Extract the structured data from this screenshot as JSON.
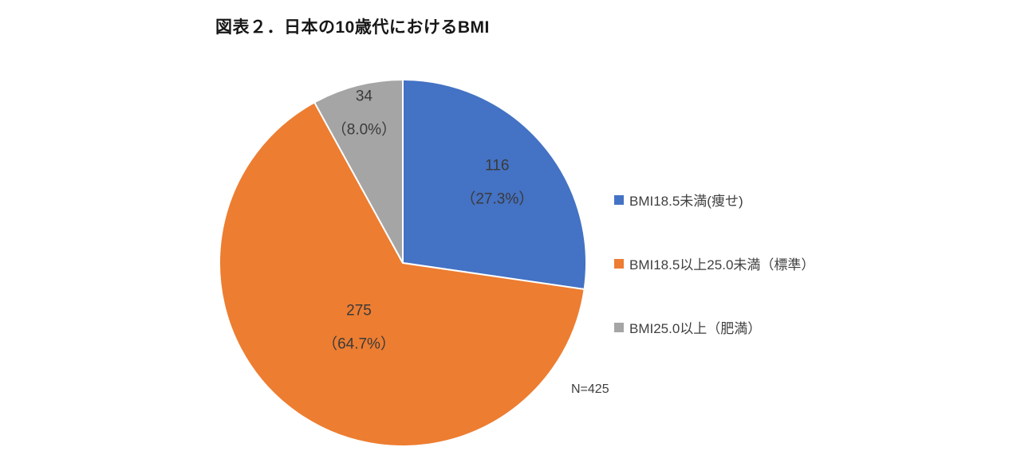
{
  "header": {
    "title": "図表２．日本の10歳代におけるBMI"
  },
  "note": {
    "n_label": "N=425"
  },
  "chart_data": {
    "type": "pie",
    "title": "図表２．日本の10歳代におけるBMI",
    "total": 425,
    "start_angle_deg": 0,
    "direction": "clockwise",
    "legend_position": "right",
    "slices": [
      {
        "label": "BMI18.5未満(痩せ)",
        "value": 116,
        "pct": 27.3,
        "value_label": "116",
        "pct_label": "（27.3%）",
        "color": "#4472C4"
      },
      {
        "label": "BMI18.5以上25.0未満（標準）",
        "value": 275,
        "pct": 64.7,
        "value_label": "275",
        "pct_label": "（64.7%）",
        "color": "#ED7D31"
      },
      {
        "label": "BMI25.0以上（肥満）",
        "value": 34,
        "pct": 8.0,
        "value_label": "34",
        "pct_label": "（8.0%）",
        "color": "#A5A5A5"
      }
    ]
  }
}
